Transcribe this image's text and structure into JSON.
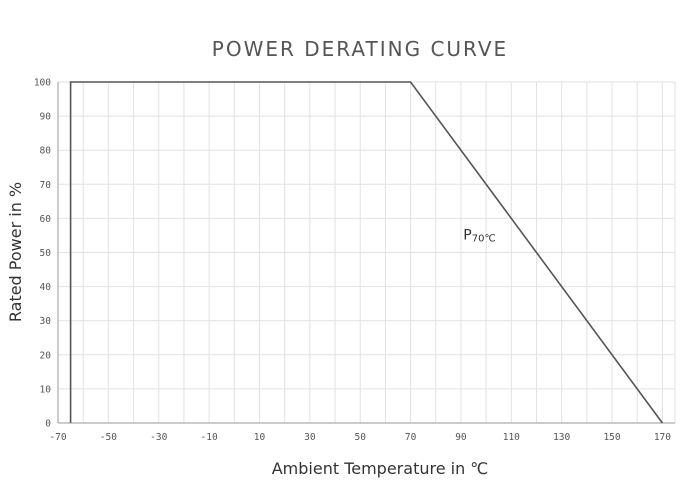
{
  "chart_data": {
    "type": "line",
    "title": "POWER DERATING CURVE",
    "xlabel": "Ambient Temperature  in ℃",
    "ylabel": "Rated Power in %",
    "xlim": [
      -70,
      175
    ],
    "ylim": [
      0,
      100
    ],
    "x_ticks": [
      -70,
      -50,
      -30,
      -10,
      10,
      30,
      50,
      70,
      90,
      110,
      130,
      150,
      170
    ],
    "y_ticks": [
      0,
      10,
      20,
      30,
      40,
      50,
      60,
      70,
      80,
      90,
      100
    ],
    "grid": true,
    "legend": "none",
    "series": [
      {
        "x": [
          -65,
          -65,
          70,
          170
        ],
        "y": [
          0,
          100,
          100,
          0
        ],
        "color": "#555555"
      }
    ],
    "annotations": [
      {
        "text": "P",
        "subtext": "70℃",
        "x": 110,
        "y": 55
      }
    ]
  }
}
